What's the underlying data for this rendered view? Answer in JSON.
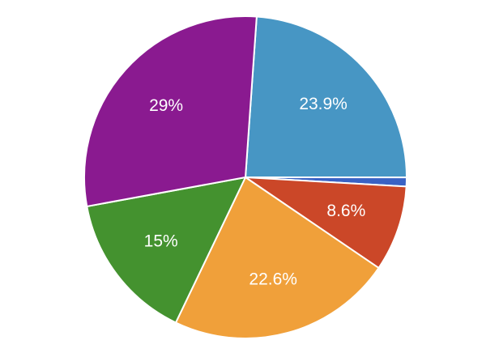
{
  "chart_data": {
    "type": "pie",
    "categories": [
      null,
      null,
      null,
      null,
      null,
      null
    ],
    "values": [
      23.9,
      0.9,
      8.6,
      22.6,
      15,
      29
    ],
    "value_labels": [
      "23.9%",
      null,
      "8.6%",
      "22.6%",
      "15%",
      "29%"
    ],
    "colors": [
      "#4796c4",
      "#3a62c4",
      "#cb4728",
      "#f0a03a",
      "#44922f",
      "#8a1a90"
    ]
  }
}
